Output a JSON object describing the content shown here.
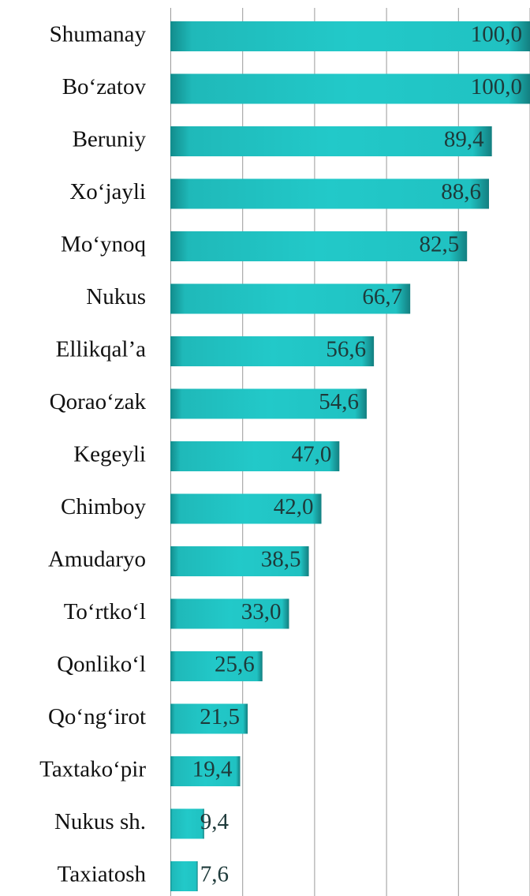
{
  "chart_data": {
    "type": "barh",
    "categories": [
      "Shumanay",
      "Bo‘zatov",
      "Beruniy",
      "Xo‘jayli",
      "Mo‘ynoq",
      "Nukus",
      "Ellikqal’a",
      "Qorao‘zak",
      "Kegeyli",
      "Chimboy",
      "Amudaryo",
      "To‘rtko‘l",
      "Qonliko‘l",
      "Qo‘ng‘irot",
      "Taxtako‘pir",
      "Nukus sh.",
      "Taxiatosh"
    ],
    "values": [
      100.0,
      100.0,
      89.4,
      88.6,
      82.5,
      66.7,
      56.6,
      54.6,
      47.0,
      42.0,
      38.5,
      33.0,
      25.6,
      21.5,
      19.4,
      9.4,
      7.6
    ],
    "value_labels": [
      "100,0",
      "100,0",
      "89,4",
      "88,6",
      "82,5",
      "66,7",
      "56,6",
      "54,6",
      "47,0",
      "42,0",
      "38,5",
      "33,0",
      "25,6",
      "21,5",
      "19,4",
      "9,4",
      "7,6"
    ],
    "color": "#22c9c9",
    "xlim": [
      0,
      100
    ],
    "xticks": [
      0,
      20,
      40,
      60,
      80,
      100
    ],
    "grid": true
  }
}
